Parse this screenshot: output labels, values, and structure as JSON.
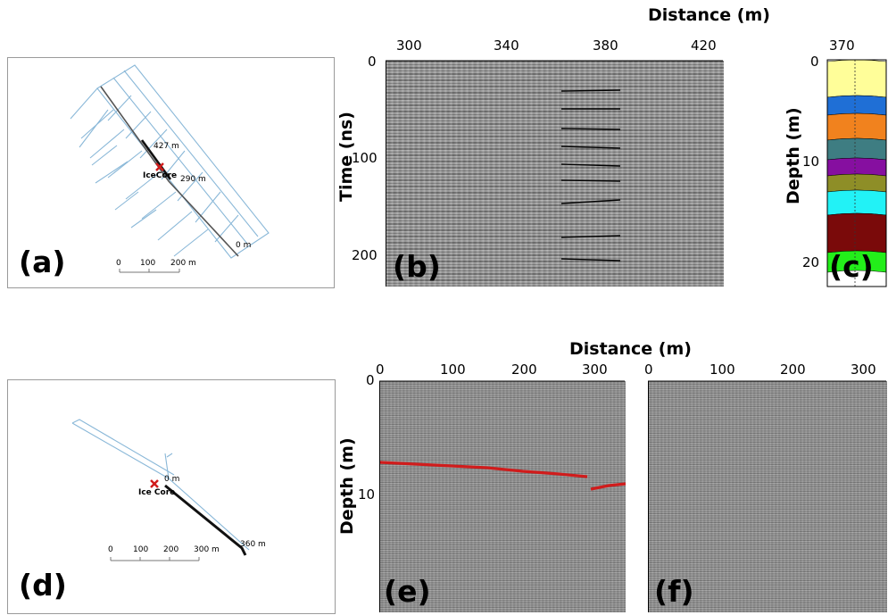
{
  "panels": {
    "a": {
      "letter": "(a)",
      "labels": {
        "far_end": "427 m",
        "core": "IceCore",
        "mid": "290 m",
        "start": "0 m"
      },
      "scale": [
        "0",
        "100",
        "200 m"
      ]
    },
    "b": {
      "letter": "(b)",
      "xlabel": "Distance (m)",
      "ylabel": "Time (ns)",
      "xticks": [
        "300",
        "340",
        "380",
        "420"
      ],
      "yticks": [
        "0",
        "100",
        "200"
      ]
    },
    "c": {
      "letter": "(c)",
      "ylabel": "Depth (m)",
      "xticks": [
        "370"
      ],
      "yticks": [
        "0",
        "10",
        "20"
      ],
      "layer_colors": [
        "#fffe99",
        "#1f6fd6",
        "#f1821e",
        "#3e7d82",
        "#860fa0",
        "#8e8e27",
        "#22f2f6",
        "#7a0a0a",
        "#23ee1a"
      ]
    },
    "d": {
      "letter": "(d)",
      "labels": {
        "start": "0 m",
        "core": "Ice Core",
        "end": "360 m"
      },
      "scale": [
        "0",
        "100",
        "200",
        "300 m"
      ]
    },
    "e": {
      "letter": "(e)",
      "ylabel": "Depth (m)",
      "xticks": [
        "0",
        "100",
        "200",
        "300"
      ],
      "yticks": [
        "0",
        "10"
      ],
      "pick_color": "#d01c1c"
    },
    "f": {
      "letter": "(f)",
      "xticks": [
        "0",
        "100",
        "200",
        "300"
      ]
    },
    "bottom_xlabel": "Distance (m)"
  }
}
